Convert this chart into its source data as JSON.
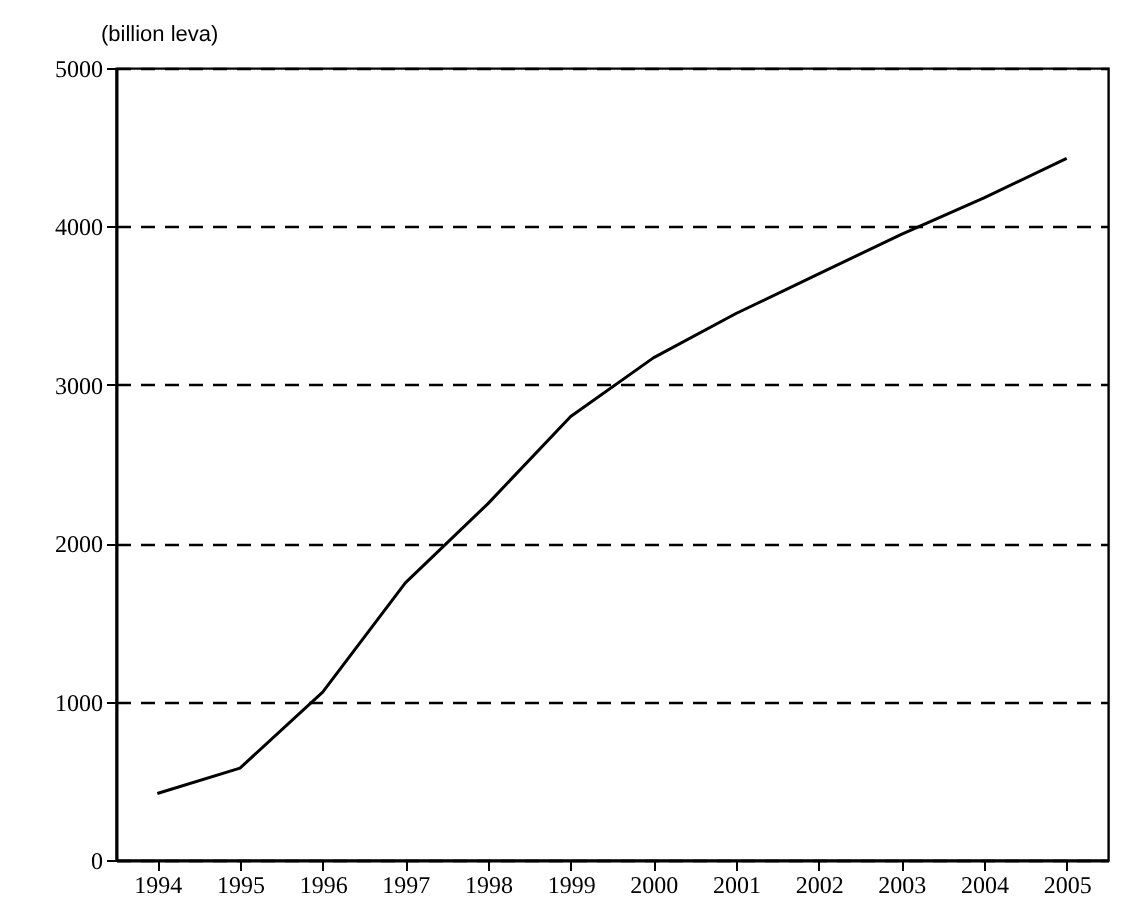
{
  "chart_data": {
    "type": "line",
    "ylabel": "(billion leva)",
    "x": [
      1994,
      1995,
      1996,
      1997,
      1998,
      1999,
      2000,
      2001,
      2002,
      2003,
      2004,
      2005
    ],
    "series": [
      {
        "color": "#000000",
        "values": [
          420,
          580,
          1060,
          1750,
          2250,
          2800,
          3170,
          3450,
          3700,
          3950,
          4180,
          4430
        ]
      }
    ],
    "xlim": [
      1993.5,
      2005.5
    ],
    "xticks": [
      1994,
      1995,
      1996,
      1997,
      1998,
      1999,
      2000,
      2001,
      2002,
      2003,
      2004,
      2005
    ],
    "ylim": [
      0,
      5000
    ],
    "yticks": [
      0,
      1000,
      2000,
      3000,
      4000,
      5000
    ],
    "grid": "y",
    "marker": "none",
    "line_style": "solid"
  }
}
